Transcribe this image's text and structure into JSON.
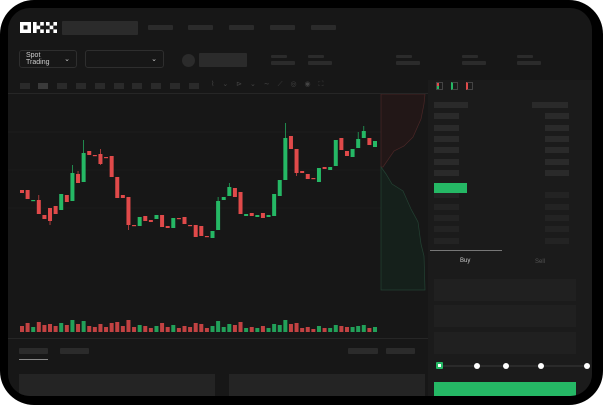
{
  "header": {
    "logo": "OKX"
  },
  "toolbar": {
    "market_type": "Spot Trading",
    "pair_selector": ""
  },
  "order_form": {
    "tabs": [
      {
        "label": "Buy",
        "active": true
      },
      {
        "label": "Sell",
        "active": false
      }
    ],
    "slider_percent": 0
  },
  "colors": {
    "up": "#25b865",
    "down": "#e04a4a",
    "accent": "#25b865",
    "background": "#171717"
  },
  "candles": [
    [
      118,
      115,
      118,
      115
    ],
    [
      118,
      109,
      118,
      109
    ],
    [
      107,
      108,
      108,
      107
    ],
    [
      108,
      94,
      113,
      94
    ],
    [
      93,
      89,
      93,
      89
    ],
    [
      100,
      87,
      100,
      83
    ],
    [
      102,
      94,
      102,
      94
    ],
    [
      98,
      114,
      114,
      98
    ],
    [
      113,
      106,
      113,
      106
    ],
    [
      107,
      135,
      143,
      107
    ],
    [
      134,
      125,
      137,
      125
    ],
    [
      126,
      155,
      168,
      126
    ],
    [
      157,
      153,
      157,
      153
    ],
    [
      153,
      152,
      153,
      152
    ],
    [
      154,
      144,
      159,
      143
    ],
    [
      151,
      150,
      151,
      150
    ],
    [
      152,
      131,
      152,
      131
    ],
    [
      131,
      110,
      131,
      110
    ],
    [
      113,
      110,
      113,
      110
    ],
    [
      111,
      83,
      111,
      78
    ],
    [
      83,
      82,
      83,
      82
    ],
    [
      82,
      91,
      91,
      82
    ],
    [
      92,
      87,
      92,
      87
    ],
    [
      88,
      86,
      88,
      86
    ],
    [
      89,
      93,
      93,
      89
    ],
    [
      93,
      81,
      93,
      81
    ],
    [
      82,
      80,
      82,
      80
    ],
    [
      80,
      90,
      90,
      80
    ],
    [
      90,
      89,
      90,
      89
    ],
    [
      91,
      84,
      91,
      84
    ],
    [
      83,
      82,
      83,
      82
    ],
    [
      83,
      71,
      83,
      71
    ],
    [
      82,
      72,
      82,
      72
    ],
    [
      72,
      71,
      72,
      71
    ],
    [
      70,
      77,
      77,
      70
    ],
    [
      78,
      107,
      111,
      78
    ],
    [
      108,
      111,
      111,
      108
    ],
    [
      112,
      121,
      125,
      112
    ],
    [
      120,
      111,
      120,
      111
    ],
    [
      116,
      94,
      116,
      94
    ],
    [
      92,
      94,
      94,
      92
    ],
    [
      95,
      92,
      95,
      92
    ],
    [
      91,
      93,
      93,
      91
    ],
    [
      95,
      90,
      95,
      90
    ],
    [
      91,
      93,
      93,
      91
    ],
    [
      92,
      114,
      114,
      92
    ],
    [
      112,
      128,
      128,
      112
    ],
    [
      128,
      170,
      185,
      128
    ],
    [
      172,
      159,
      172,
      159
    ],
    [
      159,
      135,
      159,
      132
    ],
    [
      137,
      135,
      137,
      135
    ],
    [
      134,
      129,
      134,
      129
    ],
    [
      130,
      129,
      130,
      129
    ],
    [
      126,
      140,
      140,
      126
    ],
    [
      141,
      139,
      141,
      139
    ],
    [
      138,
      141,
      141,
      138
    ],
    [
      142,
      168,
      168,
      142
    ],
    [
      170,
      158,
      170,
      158
    ],
    [
      157,
      152,
      157,
      152
    ],
    [
      151,
      159,
      159,
      151
    ],
    [
      160,
      169,
      176,
      160
    ],
    [
      170,
      177,
      182,
      170
    ],
    [
      170,
      163,
      170,
      163
    ],
    [
      161,
      167,
      167,
      161
    ]
  ],
  "volumes": [
    6,
    9,
    5,
    10,
    7,
    8,
    6,
    9,
    7,
    12,
    8,
    11,
    6,
    5,
    8,
    5,
    9,
    10,
    6,
    12,
    5,
    7,
    6,
    4,
    6,
    9,
    5,
    7,
    4,
    6,
    5,
    9,
    8,
    4,
    6,
    11,
    5,
    8,
    7,
    10,
    4,
    5,
    4,
    6,
    4,
    8,
    7,
    12,
    8,
    9,
    4,
    5,
    3,
    6,
    4,
    4,
    7,
    6,
    5,
    5,
    6,
    7,
    4,
    5
  ]
}
